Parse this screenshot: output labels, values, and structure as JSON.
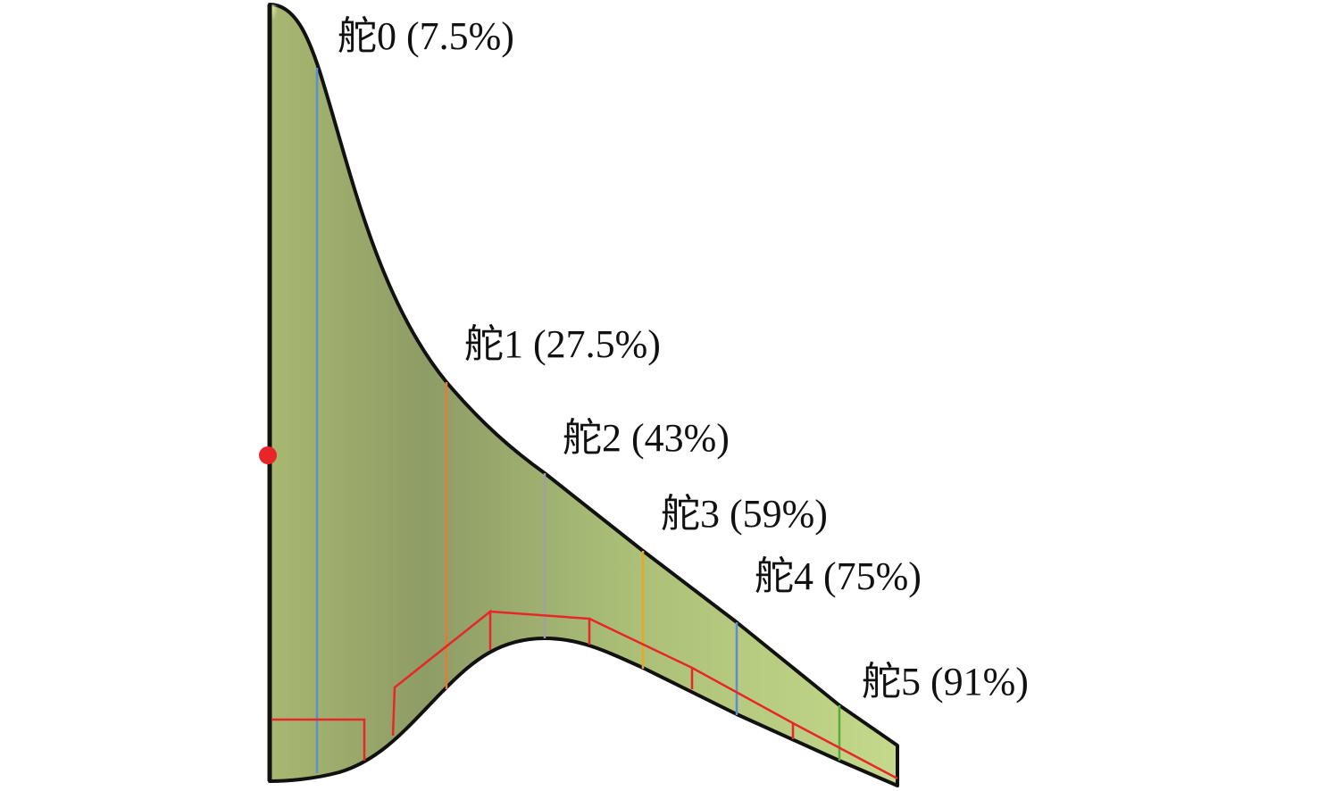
{
  "surfaces": [
    {
      "label": "舵0 (7.5%)"
    },
    {
      "label": "舵1 (27.5%)"
    },
    {
      "label": "舵2 (43%)"
    },
    {
      "label": "舵3 (59%)"
    },
    {
      "label": "舵4 (75%)"
    },
    {
      "label": "舵5 (91%)"
    }
  ]
}
